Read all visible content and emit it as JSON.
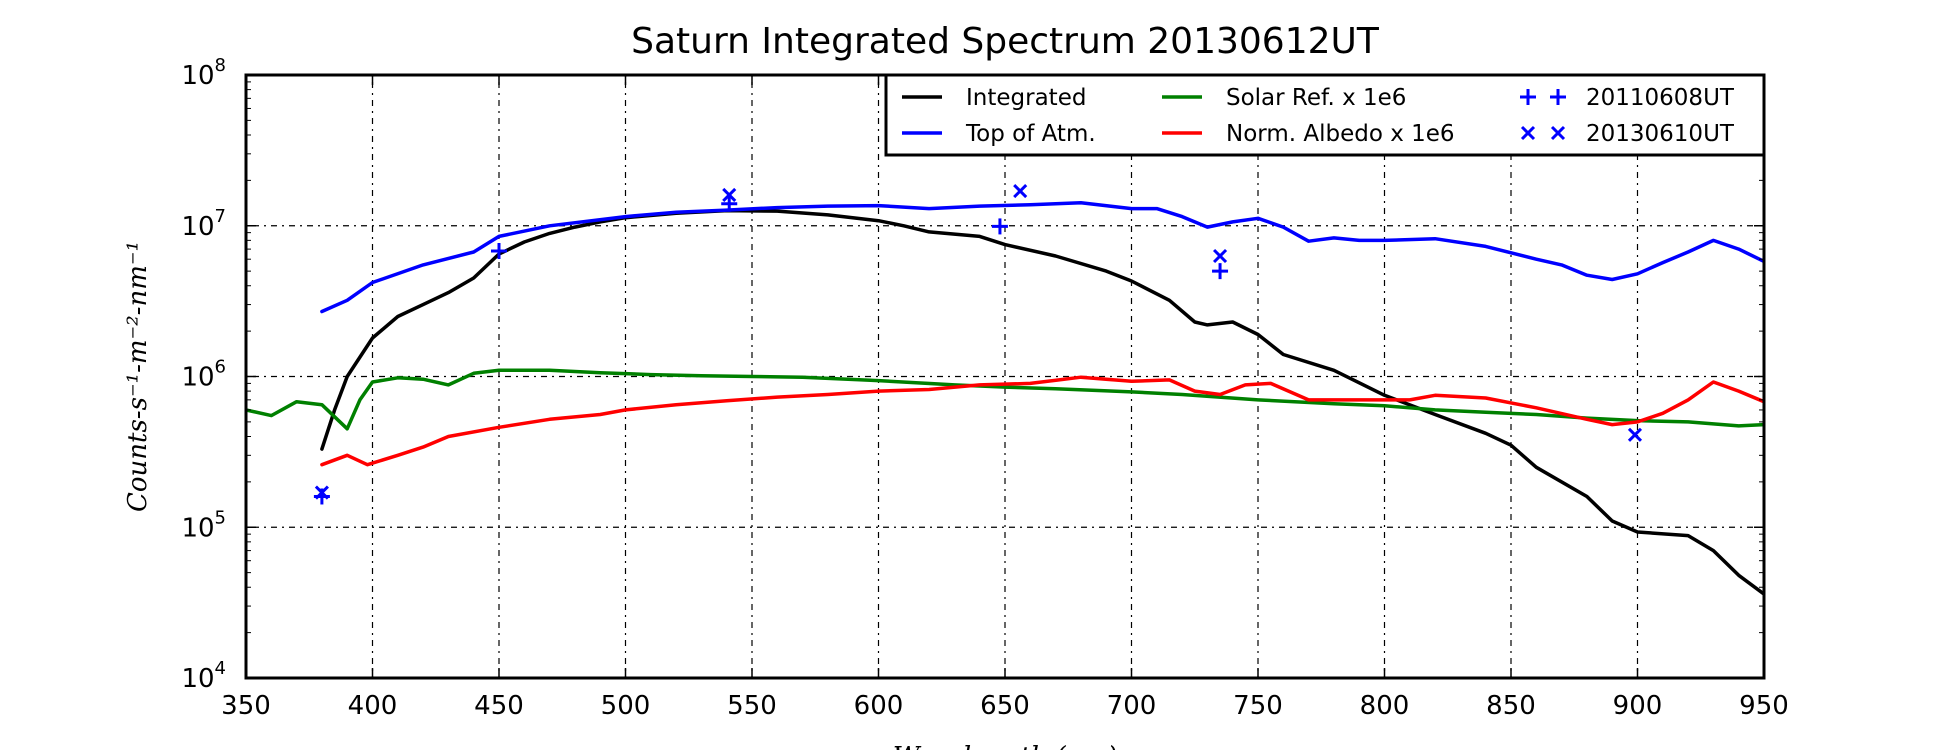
{
  "chart_data": {
    "type": "line",
    "title": "Saturn Integrated Spectrum 20130612UT",
    "xlabel": "Wavelength (nm)",
    "ylabel": "Counts-s⁻¹-m⁻²-nm⁻¹",
    "xlim": [
      350,
      950
    ],
    "ylim": [
      10000,
      100000000
    ],
    "yscale": "log",
    "grid": true,
    "legend_position": "top-right",
    "x_ticks": [
      "350",
      "400",
      "450",
      "500",
      "550",
      "600",
      "650",
      "700",
      "750",
      "800",
      "850",
      "900",
      "950"
    ],
    "y_ticks": [
      {
        "base": "10",
        "exp": "4"
      },
      {
        "base": "10",
        "exp": "5"
      },
      {
        "base": "10",
        "exp": "6"
      },
      {
        "base": "10",
        "exp": "7"
      },
      {
        "base": "10",
        "exp": "8"
      }
    ],
    "series": [
      {
        "name": "Integrated",
        "color": "#000000",
        "points": [
          [
            380,
            330000
          ],
          [
            385,
            600000
          ],
          [
            390,
            1000000
          ],
          [
            400,
            1800000
          ],
          [
            410,
            2500000
          ],
          [
            420,
            3000000
          ],
          [
            430,
            3600000
          ],
          [
            440,
            4500000
          ],
          [
            450,
            6500000
          ],
          [
            460,
            7800000
          ],
          [
            470,
            8900000
          ],
          [
            480,
            9800000
          ],
          [
            490,
            10600000
          ],
          [
            500,
            11300000
          ],
          [
            520,
            12100000
          ],
          [
            540,
            12600000
          ],
          [
            560,
            12500000
          ],
          [
            580,
            11800000
          ],
          [
            600,
            10800000
          ],
          [
            610,
            10000000
          ],
          [
            620,
            9100000
          ],
          [
            640,
            8500000
          ],
          [
            650,
            7500000
          ],
          [
            670,
            6300000
          ],
          [
            690,
            5000000
          ],
          [
            700,
            4300000
          ],
          [
            715,
            3200000
          ],
          [
            725,
            2300000
          ],
          [
            730,
            2200000
          ],
          [
            740,
            2300000
          ],
          [
            750,
            1900000
          ],
          [
            760,
            1400000
          ],
          [
            780,
            1100000
          ],
          [
            800,
            750000
          ],
          [
            820,
            560000
          ],
          [
            840,
            420000
          ],
          [
            850,
            350000
          ],
          [
            860,
            250000
          ],
          [
            880,
            160000
          ],
          [
            890,
            110000
          ],
          [
            900,
            93000
          ],
          [
            920,
            88000
          ],
          [
            930,
            70000
          ],
          [
            940,
            48000
          ],
          [
            950,
            36000
          ]
        ]
      },
      {
        "name": "Top of Atm.",
        "color": "#0000ff",
        "points": [
          [
            380,
            2700000
          ],
          [
            390,
            3200000
          ],
          [
            400,
            4200000
          ],
          [
            420,
            5500000
          ],
          [
            440,
            6700000
          ],
          [
            450,
            8500000
          ],
          [
            470,
            10000000
          ],
          [
            500,
            11500000
          ],
          [
            520,
            12300000
          ],
          [
            540,
            12700000
          ],
          [
            560,
            13200000
          ],
          [
            580,
            13500000
          ],
          [
            600,
            13600000
          ],
          [
            620,
            13000000
          ],
          [
            640,
            13500000
          ],
          [
            660,
            13800000
          ],
          [
            680,
            14200000
          ],
          [
            700,
            13000000
          ],
          [
            710,
            13000000
          ],
          [
            720,
            11500000
          ],
          [
            730,
            9800000
          ],
          [
            740,
            10600000
          ],
          [
            750,
            11200000
          ],
          [
            760,
            9800000
          ],
          [
            770,
            7900000
          ],
          [
            780,
            8300000
          ],
          [
            790,
            8000000
          ],
          [
            800,
            8000000
          ],
          [
            820,
            8200000
          ],
          [
            840,
            7300000
          ],
          [
            860,
            6000000
          ],
          [
            870,
            5500000
          ],
          [
            880,
            4700000
          ],
          [
            890,
            4400000
          ],
          [
            900,
            4800000
          ],
          [
            910,
            5700000
          ],
          [
            920,
            6700000
          ],
          [
            930,
            8000000
          ],
          [
            940,
            7000000
          ],
          [
            950,
            5800000
          ]
        ]
      },
      {
        "name": "Solar Ref. x 1e6",
        "color": "#008000",
        "points": [
          [
            350,
            600000
          ],
          [
            360,
            550000
          ],
          [
            370,
            680000
          ],
          [
            380,
            650000
          ],
          [
            390,
            450000
          ],
          [
            395,
            700000
          ],
          [
            400,
            920000
          ],
          [
            410,
            980000
          ],
          [
            420,
            960000
          ],
          [
            430,
            880000
          ],
          [
            440,
            1050000
          ],
          [
            450,
            1100000
          ],
          [
            470,
            1100000
          ],
          [
            490,
            1060000
          ],
          [
            510,
            1030000
          ],
          [
            530,
            1010000
          ],
          [
            550,
            1000000
          ],
          [
            570,
            990000
          ],
          [
            600,
            940000
          ],
          [
            630,
            880000
          ],
          [
            650,
            850000
          ],
          [
            670,
            830000
          ],
          [
            700,
            790000
          ],
          [
            720,
            760000
          ],
          [
            750,
            700000
          ],
          [
            780,
            660000
          ],
          [
            800,
            640000
          ],
          [
            820,
            600000
          ],
          [
            840,
            580000
          ],
          [
            860,
            560000
          ],
          [
            880,
            530000
          ],
          [
            900,
            510000
          ],
          [
            920,
            500000
          ],
          [
            940,
            470000
          ],
          [
            950,
            480000
          ]
        ]
      },
      {
        "name": "Norm. Albedo x 1e6",
        "color": "#ff0000",
        "points": [
          [
            380,
            260000
          ],
          [
            390,
            300000
          ],
          [
            398,
            260000
          ],
          [
            410,
            300000
          ],
          [
            420,
            340000
          ],
          [
            430,
            400000
          ],
          [
            450,
            460000
          ],
          [
            470,
            520000
          ],
          [
            490,
            560000
          ],
          [
            500,
            600000
          ],
          [
            520,
            650000
          ],
          [
            540,
            690000
          ],
          [
            560,
            730000
          ],
          [
            580,
            760000
          ],
          [
            600,
            800000
          ],
          [
            620,
            820000
          ],
          [
            640,
            880000
          ],
          [
            660,
            900000
          ],
          [
            680,
            990000
          ],
          [
            700,
            930000
          ],
          [
            715,
            950000
          ],
          [
            725,
            800000
          ],
          [
            735,
            760000
          ],
          [
            745,
            880000
          ],
          [
            755,
            900000
          ],
          [
            770,
            700000
          ],
          [
            790,
            700000
          ],
          [
            810,
            700000
          ],
          [
            820,
            750000
          ],
          [
            840,
            720000
          ],
          [
            860,
            620000
          ],
          [
            880,
            520000
          ],
          [
            890,
            480000
          ],
          [
            900,
            500000
          ],
          [
            910,
            570000
          ],
          [
            920,
            700000
          ],
          [
            930,
            920000
          ],
          [
            940,
            800000
          ],
          [
            950,
            680000
          ]
        ]
      }
    ],
    "markers": [
      {
        "name": "20110608UT",
        "symbol": "+",
        "color": "#0000ff",
        "points": [
          [
            380,
            160000
          ],
          [
            450,
            6800000
          ],
          [
            541,
            14000000
          ],
          [
            648,
            9900000
          ],
          [
            735,
            5000000
          ]
        ]
      },
      {
        "name": "20130610UT",
        "symbol": "x",
        "color": "#0000ff",
        "points": [
          [
            380,
            170000
          ],
          [
            541,
            16000000
          ],
          [
            656,
            17000000
          ],
          [
            735,
            6300000
          ],
          [
            899,
            410000
          ]
        ]
      }
    ],
    "legend": [
      {
        "label": "Integrated",
        "kind": "line",
        "color": "#000000"
      },
      {
        "label": "Top of Atm.",
        "kind": "line",
        "color": "#0000ff"
      },
      {
        "label": "Solar Ref. x 1e6",
        "kind": "line",
        "color": "#008000"
      },
      {
        "label": "Norm. Albedo x 1e6",
        "kind": "line",
        "color": "#ff0000"
      },
      {
        "label": "20110608UT",
        "kind": "plus",
        "color": "#0000ff"
      },
      {
        "label": "20130610UT",
        "kind": "cross",
        "color": "#0000ff"
      }
    ]
  }
}
